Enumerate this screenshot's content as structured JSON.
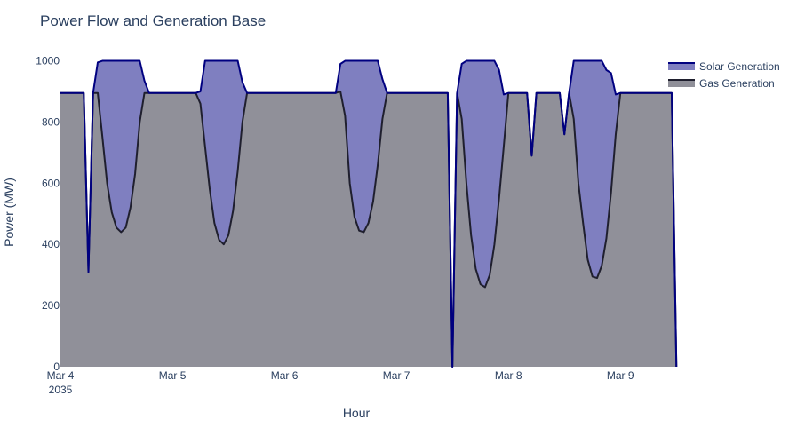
{
  "chart_data": {
    "type": "area",
    "title": "Power Flow and Generation Base",
    "xlabel": "Hour",
    "ylabel": "Power (MW)",
    "x_start": "2035-03-04 00:00",
    "x_step_hours": 1,
    "xlim": [
      "2035-03-04 00:00",
      "2035-03-09 07:00"
    ],
    "ylim": [
      0,
      1080
    ],
    "y_ticks": [
      0,
      200,
      400,
      600,
      800,
      1000
    ],
    "x_ticks": [
      {
        "label": "Mar 4",
        "sublabel": "2035",
        "value": "2035-03-04 00:00"
      },
      {
        "label": "Mar 5",
        "sublabel": "",
        "value": "2035-03-05 00:00"
      },
      {
        "label": "Mar 6",
        "sublabel": "",
        "value": "2035-03-06 00:00"
      },
      {
        "label": "Mar 7",
        "sublabel": "",
        "value": "2035-03-07 00:00"
      },
      {
        "label": "Mar 8",
        "sublabel": "",
        "value": "2035-03-08 00:00"
      },
      {
        "label": "Mar 9",
        "sublabel": "",
        "value": "2035-03-09 00:00"
      }
    ],
    "legend_position": "top-right",
    "stacked": true,
    "series": [
      {
        "name": "Gas Generation",
        "line_color": "#1f1f2e",
        "fill_color": "#909099",
        "values": [
          895,
          895,
          895,
          895,
          895,
          895,
          310,
          895,
          895,
          750,
          600,
          505,
          455,
          440,
          455,
          520,
          630,
          800,
          895,
          895,
          895,
          895,
          895,
          895,
          895,
          895,
          895,
          895,
          895,
          895,
          860,
          720,
          580,
          470,
          415,
          400,
          430,
          510,
          640,
          800,
          895,
          895,
          895,
          895,
          895,
          895,
          895,
          895,
          895,
          895,
          895,
          895,
          895,
          895,
          895,
          895,
          895,
          895,
          895,
          895,
          900,
          820,
          600,
          490,
          445,
          440,
          470,
          540,
          660,
          810,
          895,
          895,
          895,
          895,
          895,
          895,
          895,
          895,
          895,
          895,
          895,
          895,
          895,
          895,
          0,
          895,
          810,
          600,
          430,
          320,
          270,
          260,
          300,
          400,
          550,
          720,
          895,
          895,
          895,
          895,
          895,
          690,
          895,
          895,
          895,
          895,
          895,
          895,
          760,
          895,
          810,
          600,
          470,
          350,
          295,
          290,
          330,
          420,
          570,
          760,
          895,
          895,
          895,
          895,
          895,
          895,
          895,
          895,
          895,
          895,
          895,
          895,
          0
        ]
      },
      {
        "name": "Solar Generation",
        "line_color": "#000080",
        "fill_color": "#7f7fc0",
        "values": [
          0,
          0,
          0,
          0,
          0,
          0,
          0,
          0,
          100,
          250,
          400,
          495,
          545,
          560,
          545,
          480,
          370,
          200,
          40,
          0,
          0,
          0,
          0,
          0,
          0,
          0,
          0,
          0,
          0,
          0,
          40,
          280,
          420,
          530,
          585,
          600,
          570,
          490,
          360,
          130,
          0,
          0,
          0,
          0,
          0,
          0,
          0,
          0,
          0,
          0,
          0,
          0,
          0,
          0,
          0,
          0,
          0,
          0,
          0,
          0,
          90,
          180,
          400,
          510,
          555,
          560,
          530,
          460,
          340,
          130,
          0,
          0,
          0,
          0,
          0,
          0,
          0,
          0,
          0,
          0,
          0,
          0,
          0,
          0,
          0,
          0,
          180,
          400,
          570,
          680,
          730,
          740,
          700,
          600,
          420,
          170,
          0,
          0,
          0,
          0,
          0,
          0,
          0,
          0,
          0,
          0,
          0,
          0,
          0,
          0,
          190,
          400,
          530,
          650,
          705,
          710,
          670,
          550,
          390,
          130,
          0,
          0,
          0,
          0,
          0,
          0,
          0,
          0,
          0,
          0,
          0,
          0,
          0
        ]
      }
    ]
  },
  "legend": {
    "items": [
      {
        "name": "Solar Generation",
        "fill": "#7f7fc0",
        "line": "#000080"
      },
      {
        "name": "Gas Generation",
        "fill": "#909099",
        "line": "#1f1f2e"
      }
    ]
  }
}
